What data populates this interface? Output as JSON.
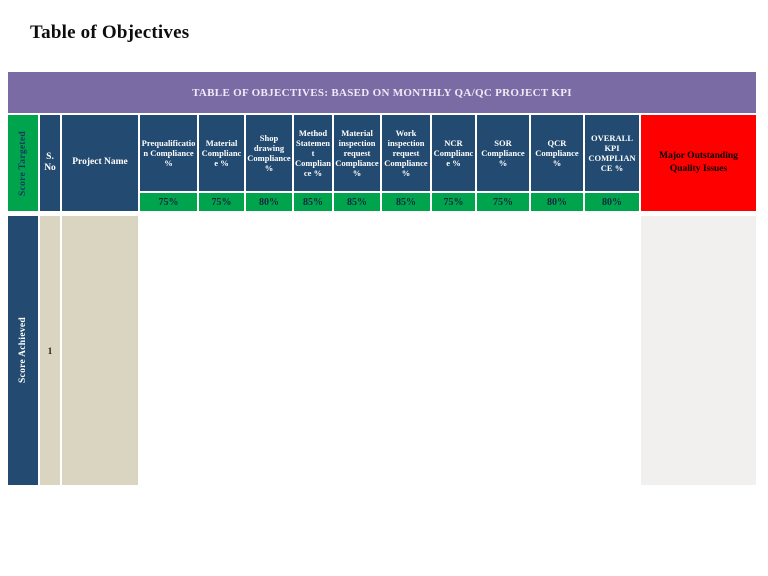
{
  "page_title": "Table of Objectives",
  "banner_title": "TABLE OF OBJECTIVES: BASED ON MONTHLY QA/QC PROJECT KPI",
  "row_labels": {
    "targeted": "Score Targeted",
    "achieved": "Score Achieved"
  },
  "fixed_columns": {
    "s_no": "S. No",
    "project_name": "Project Name"
  },
  "kpi_columns": [
    {
      "id": "prequalification-compliance",
      "label": "Prequalification Compliance %",
      "target": "75%",
      "achieved_status": "not-met"
    },
    {
      "id": "material-compliance",
      "label": "Material Compliance %",
      "target": "75%",
      "achieved_status": "not-met"
    },
    {
      "id": "shop-drawing-compliance",
      "label": "Shop drawing Compliance %",
      "target": "80%",
      "achieved_status": "met"
    },
    {
      "id": "method-statement-compliance",
      "label": "Method Statement Compliance %",
      "target": "85%",
      "achieved_status": "not-met"
    },
    {
      "id": "material-inspection-request-compliance",
      "label": "Material inspection request Compliance %",
      "target": "85%",
      "achieved_status": "met"
    },
    {
      "id": "work-inspection-request-compliance",
      "label": "Work inspection request Compliance %",
      "target": "85%",
      "achieved_status": "not-met"
    },
    {
      "id": "ncr-compliance",
      "label": "NCR Compliance %",
      "target": "75%",
      "achieved_status": "not-met"
    },
    {
      "id": "sor-compliance",
      "label": "SOR Compliance %",
      "target": "75%",
      "achieved_status": "not-met"
    },
    {
      "id": "qcr-compliance",
      "label": "QCR Compliance %",
      "target": "80%",
      "achieved_status": "not-met"
    },
    {
      "id": "overall-kpi-compliance",
      "label": "OVERALL KPI COMPLIANCE %",
      "target": "80%",
      "achieved_status": "not-met"
    }
  ],
  "last_column_label": "Major Outstanding Quality Issues",
  "rows": [
    {
      "s_no": "1",
      "project_name": "",
      "major_outstanding_issues": ""
    }
  ],
  "status_colors": {
    "met": "#00a44d",
    "not-met": "#ff0000"
  },
  "colors": {
    "banner_purple": "#7a6ba5",
    "header_navy": "#234a70",
    "target_green": "#00a44d",
    "alert_red": "#ff0000",
    "row_beige": "#d9d5c1",
    "issues_body_gray": "#f1f0ee"
  }
}
